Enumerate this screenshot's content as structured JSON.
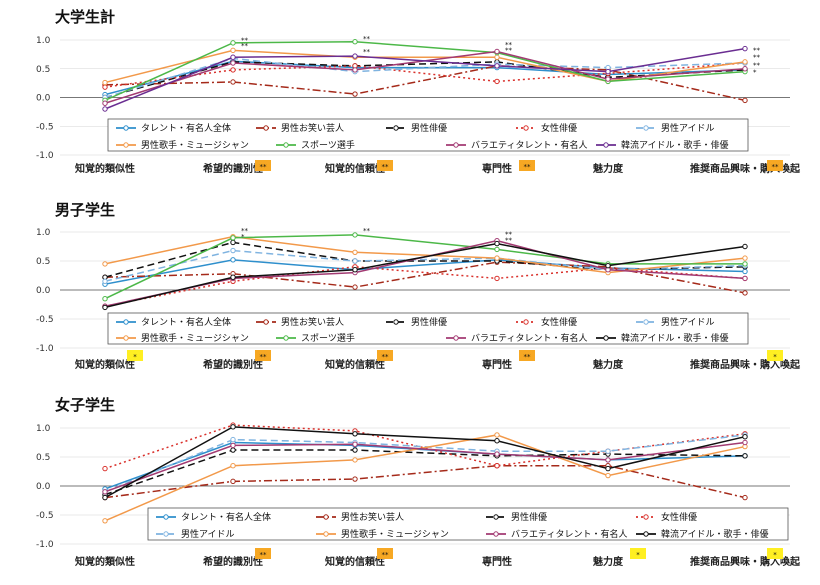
{
  "chart_data": [
    {
      "type": "line",
      "title": "大学生計",
      "categories": [
        "知覚的類似性",
        "希望的識別性",
        "知覚的信頼性",
        "専門性",
        "魅力度",
        "推奨商品興味・購入喚起"
      ],
      "ylim": [
        -1.0,
        1.0
      ],
      "yticks": [
        "1.0",
        "0.5",
        "0.0",
        "-0.5",
        "-1.0"
      ],
      "legend_rows": [
        [
          0,
          1,
          2,
          3,
          4
        ],
        [
          5,
          6,
          7,
          8
        ]
      ],
      "series": [
        {
          "name": "タレント・有名人全体",
          "color": "#2e8fcc",
          "style": "solid",
          "values": [
            0.05,
            0.63,
            0.52,
            0.52,
            0.4,
            0.48
          ]
        },
        {
          "name": "男性お笑い芸人",
          "color": "#a52a1a",
          "style": "dashdot",
          "values": [
            0.22,
            0.27,
            0.06,
            0.55,
            0.48,
            -0.05
          ]
        },
        {
          "name": "男性俳優",
          "color": "#111111",
          "style": "dash",
          "values": [
            0.0,
            0.62,
            0.55,
            0.62,
            0.35,
            0.48
          ]
        },
        {
          "name": "女性俳優",
          "color": "#d9302b",
          "style": "dot",
          "values": [
            0.18,
            0.48,
            0.55,
            0.28,
            0.42,
            0.6
          ]
        },
        {
          "name": "男性アイドル",
          "color": "#7fb3e0",
          "style": "dash",
          "values": [
            0.0,
            0.68,
            0.45,
            0.58,
            0.52,
            0.6
          ]
        },
        {
          "name": "男性歌手・ミュージシャン",
          "color": "#f2994a",
          "style": "solid",
          "values": [
            0.26,
            0.82,
            0.7,
            0.7,
            0.28,
            0.62
          ]
        },
        {
          "name": "スポーツ選手",
          "color": "#4cb848",
          "style": "solid",
          "values": [
            -0.05,
            0.95,
            0.97,
            0.78,
            0.28,
            0.45
          ]
        },
        {
          "name": "バラエティタレント・有名人",
          "color": "#a23a72",
          "style": "solid",
          "values": [
            -0.1,
            0.6,
            0.48,
            0.8,
            0.32,
            0.5
          ]
        },
        {
          "name": "韓流アイドル・歌手・俳優",
          "color": "#6a2d91",
          "style": "solid",
          "values": [
            -0.2,
            0.7,
            0.72,
            0.55,
            0.45,
            0.85
          ]
        }
      ],
      "annotations": [
        {
          "cat": 1,
          "y": 0.96,
          "text": "**"
        },
        {
          "cat": 1,
          "y": 0.86,
          "text": "**"
        },
        {
          "cat": 2,
          "y": 0.98,
          "text": "**"
        },
        {
          "cat": 2,
          "y": 0.76,
          "text": "**"
        },
        {
          "cat": 3,
          "y": 0.88,
          "text": "**"
        },
        {
          "cat": 3,
          "y": 0.78,
          "text": "**"
        },
        {
          "cat": 5,
          "y": 0.78,
          "text": "**"
        },
        {
          "cat": 5,
          "y": 0.66,
          "text": "**"
        },
        {
          "cat": 5,
          "y": 0.52,
          "text": "**"
        },
        {
          "cat": 5,
          "y": 0.4,
          "text": "*"
        }
      ],
      "badges": [
        {
          "cat": 1,
          "color": "#f7a823",
          "text": "**"
        },
        {
          "cat": 2,
          "color": "#f7a823",
          "text": "**"
        },
        {
          "cat": 3,
          "color": "#f7a823",
          "text": "**"
        },
        {
          "cat": 5,
          "color": "#f7a823",
          "text": "**"
        }
      ]
    },
    {
      "type": "line",
      "title": "男子学生",
      "categories": [
        "知覚的類似性",
        "希望的識別性",
        "知覚的信頼性",
        "専門性",
        "魅力度",
        "推奨商品興味・購入喚起"
      ],
      "ylim": [
        -1.0,
        1.0
      ],
      "yticks": [
        "1.0",
        "0.5",
        "0.0",
        "-0.5",
        "-1.0"
      ],
      "legend_rows": [
        [
          0,
          1,
          2,
          3,
          4
        ],
        [
          5,
          6,
          7,
          8
        ]
      ],
      "series": [
        {
          "name": "タレント・有名人全体",
          "color": "#2e8fcc",
          "style": "solid",
          "values": [
            0.1,
            0.52,
            0.35,
            0.52,
            0.38,
            0.32
          ]
        },
        {
          "name": "男性お笑い芸人",
          "color": "#a52a1a",
          "style": "dashdot",
          "values": [
            0.22,
            0.28,
            0.05,
            0.48,
            0.4,
            -0.05
          ]
        },
        {
          "name": "男性俳優",
          "color": "#111111",
          "style": "dash",
          "values": [
            0.22,
            0.82,
            0.5,
            0.5,
            0.35,
            0.4
          ]
        },
        {
          "name": "女性俳優",
          "color": "#d9302b",
          "style": "dot",
          "values": [
            -0.28,
            0.15,
            0.4,
            0.2,
            0.38,
            0.2
          ]
        },
        {
          "name": "男性アイドル",
          "color": "#7fb3e0",
          "style": "dash",
          "values": [
            0.15,
            0.68,
            0.5,
            0.55,
            0.35,
            0.42
          ]
        },
        {
          "name": "男性歌手・ミュージシャン",
          "color": "#f2994a",
          "style": "solid",
          "values": [
            0.45,
            0.92,
            0.65,
            0.55,
            0.3,
            0.55
          ]
        },
        {
          "name": "スポーツ選手",
          "color": "#4cb848",
          "style": "solid",
          "values": [
            -0.15,
            0.9,
            0.95,
            0.7,
            0.45,
            0.45
          ]
        },
        {
          "name": "バラエティタレント・有名人",
          "color": "#a23a72",
          "style": "solid",
          "values": [
            -0.28,
            0.2,
            0.3,
            0.85,
            0.35,
            0.2
          ]
        },
        {
          "name": "韓流アイドル・歌手・俳優",
          "color": "#111111",
          "style": "solid",
          "values": [
            -0.3,
            0.22,
            0.35,
            0.8,
            0.42,
            0.75
          ]
        }
      ],
      "annotations": [
        {
          "cat": 1,
          "y": 0.98,
          "text": "**"
        },
        {
          "cat": 1,
          "y": 0.88,
          "text": "*"
        },
        {
          "cat": 2,
          "y": 0.98,
          "text": "**"
        },
        {
          "cat": 3,
          "y": 0.92,
          "text": "**"
        },
        {
          "cat": 3,
          "y": 0.82,
          "text": "**"
        }
      ],
      "badges": [
        {
          "cat": 0,
          "color": "#ffef22",
          "text": "*"
        },
        {
          "cat": 1,
          "color": "#f7a823",
          "text": "**"
        },
        {
          "cat": 2,
          "color": "#f7a823",
          "text": "**"
        },
        {
          "cat": 3,
          "color": "#f7a823",
          "text": "**"
        },
        {
          "cat": 5,
          "color": "#ffef22",
          "text": "*"
        }
      ]
    },
    {
      "type": "line",
      "title": "女子学生",
      "categories": [
        "知覚的類似性",
        "希望的識別性",
        "知覚的信頼性",
        "専門性",
        "魅力度",
        "推奨商品興味・購入喚起"
      ],
      "ylim": [
        -1.0,
        1.0
      ],
      "yticks": [
        "1.0",
        "0.5",
        "0.0",
        "-0.5",
        "-1.0"
      ],
      "legend_rows": [
        [
          0,
          1,
          2,
          3
        ],
        [
          4,
          5,
          6,
          7
        ]
      ],
      "series": [
        {
          "name": "タレント・有名人全体",
          "color": "#2e8fcc",
          "style": "solid",
          "values": [
            -0.05,
            0.75,
            0.7,
            0.55,
            0.45,
            0.52
          ]
        },
        {
          "name": "男性お笑い芸人",
          "color": "#a52a1a",
          "style": "dashdot",
          "values": [
            -0.2,
            0.08,
            0.12,
            0.35,
            0.35,
            -0.2
          ]
        },
        {
          "name": "男性俳優",
          "color": "#111111",
          "style": "dash",
          "values": [
            -0.15,
            0.62,
            0.62,
            0.52,
            0.55,
            0.52
          ]
        },
        {
          "name": "女性俳優",
          "color": "#d9302b",
          "style": "dot",
          "values": [
            0.3,
            1.05,
            0.95,
            0.35,
            0.6,
            0.9
          ]
        },
        {
          "name": "男性アイドル",
          "color": "#7fb3e0",
          "style": "dash",
          "values": [
            -0.1,
            0.8,
            0.75,
            0.6,
            0.6,
            0.88
          ]
        },
        {
          "name": "男性歌手・ミュージシャン",
          "color": "#f2994a",
          "style": "solid",
          "values": [
            -0.6,
            0.35,
            0.45,
            0.88,
            0.18,
            0.68
          ]
        },
        {
          "name": "バラエティタレント・有名人",
          "color": "#a23a72",
          "style": "solid",
          "values": [
            -0.1,
            0.7,
            0.72,
            0.55,
            0.45,
            0.75
          ]
        },
        {
          "name": "韓流アイドル・歌手・俳優",
          "color": "#111111",
          "style": "solid",
          "values": [
            -0.2,
            1.02,
            0.9,
            0.78,
            0.3,
            0.85
          ]
        }
      ],
      "annotations": [],
      "badges": [
        {
          "cat": 1,
          "color": "#f7a823",
          "text": "**"
        },
        {
          "cat": 2,
          "color": "#f7a823",
          "text": "**"
        },
        {
          "cat": 4,
          "color": "#ffef22",
          "text": "*"
        },
        {
          "cat": 5,
          "color": "#ffef22",
          "text": "*"
        }
      ]
    }
  ]
}
